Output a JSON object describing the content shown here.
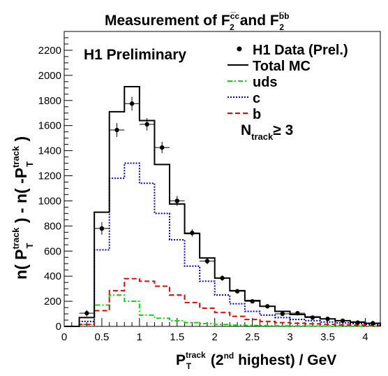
{
  "chart_data": {
    "type": "histogram",
    "title_main": "Measurement of F",
    "title_cc_sup": "c̅c",
    "title_sub2": "2",
    "title_and": "and F",
    "title_bb_sup": "b̅b",
    "ylabel": {
      "part1": "n( P",
      "sup": "track",
      "sub": "T",
      "part2": " ) - n( -P",
      "part3": " )"
    },
    "xlabel": {
      "p": "P",
      "sup": "track",
      "sub": "T",
      "mid": " (2",
      "nd": "nd",
      "rest": " highest)  / GeV"
    },
    "annotation": "H1 Preliminary",
    "ntrack": {
      "n": "N",
      "sub": "track",
      "rest": "≥ 3"
    },
    "xlim": [
      0,
      4.2
    ],
    "ylim": [
      0,
      2350
    ],
    "xticks": [
      0,
      0.5,
      1,
      1.5,
      2,
      2.5,
      3,
      3.5,
      4
    ],
    "xtick_labels": [
      "0",
      "0.5",
      "1",
      "1.5",
      "2",
      "2.5",
      "3",
      "3.5",
      "4"
    ],
    "yticks": [
      0,
      200,
      400,
      600,
      800,
      1000,
      1200,
      1400,
      1600,
      1800,
      2000,
      2200
    ],
    "ytick_labels": [
      "0",
      "200",
      "400",
      "600",
      "800",
      "1000",
      "1200",
      "1400",
      "1600",
      "1800",
      "2000",
      "2200"
    ],
    "bin_edges": [
      0,
      0.2,
      0.4,
      0.6,
      0.8,
      1.0,
      1.2,
      1.4,
      1.6,
      1.8,
      2.0,
      2.2,
      2.4,
      2.6,
      2.8,
      3.0,
      3.2,
      3.4,
      3.6,
      3.8,
      4.0,
      4.2
    ],
    "legend": {
      "data": "H1 Data (Prel.)",
      "total": "Total MC",
      "uds": "uds",
      "c": "c",
      "b": "b"
    },
    "colors": {
      "data": "#000000",
      "total": "#000000",
      "uds": "#00dd00",
      "c": "#0000cc",
      "b": "#ee0000"
    },
    "series": [
      {
        "name": "Total MC",
        "values": [
          0,
          70,
          910,
          1710,
          1910,
          1640,
          1290,
          975,
          740,
          545,
          385,
          285,
          205,
          160,
          120,
          95,
          75,
          60,
          45,
          35,
          25
        ]
      },
      {
        "name": "uds",
        "values": [
          0,
          15,
          170,
          250,
          200,
          90,
          65,
          45,
          30,
          22,
          15,
          10,
          8,
          6,
          5,
          4,
          3,
          3,
          2,
          2,
          2
        ]
      },
      {
        "name": "c",
        "values": [
          0,
          40,
          610,
          1180,
          1300,
          1140,
          900,
          690,
          480,
          360,
          250,
          180,
          120,
          90,
          70,
          55,
          45,
          35,
          28,
          22,
          16
        ]
      },
      {
        "name": "b",
        "values": [
          0,
          15,
          125,
          285,
          380,
          360,
          320,
          250,
          190,
          145,
          110,
          80,
          55,
          40,
          30,
          25,
          20,
          16,
          12,
          10,
          8
        ]
      }
    ],
    "data_points": {
      "name": "H1 Data (Prel.)",
      "x": [
        0.3,
        0.5,
        0.7,
        0.9,
        1.1,
        1.3,
        1.5,
        1.7,
        1.9,
        2.1,
        2.3,
        2.5,
        2.7,
        2.9,
        3.1,
        3.3,
        3.5,
        3.7,
        3.9,
        4.1
      ],
      "y": [
        105,
        780,
        1565,
        1775,
        1610,
        1425,
        1000,
        745,
        520,
        385,
        280,
        200,
        160,
        100,
        105,
        70,
        60,
        45,
        30,
        25
      ],
      "yerr": [
        25,
        50,
        55,
        55,
        50,
        45,
        40,
        30,
        25,
        20,
        15,
        12,
        10,
        10,
        10,
        8,
        8,
        7,
        6,
        6
      ]
    }
  }
}
